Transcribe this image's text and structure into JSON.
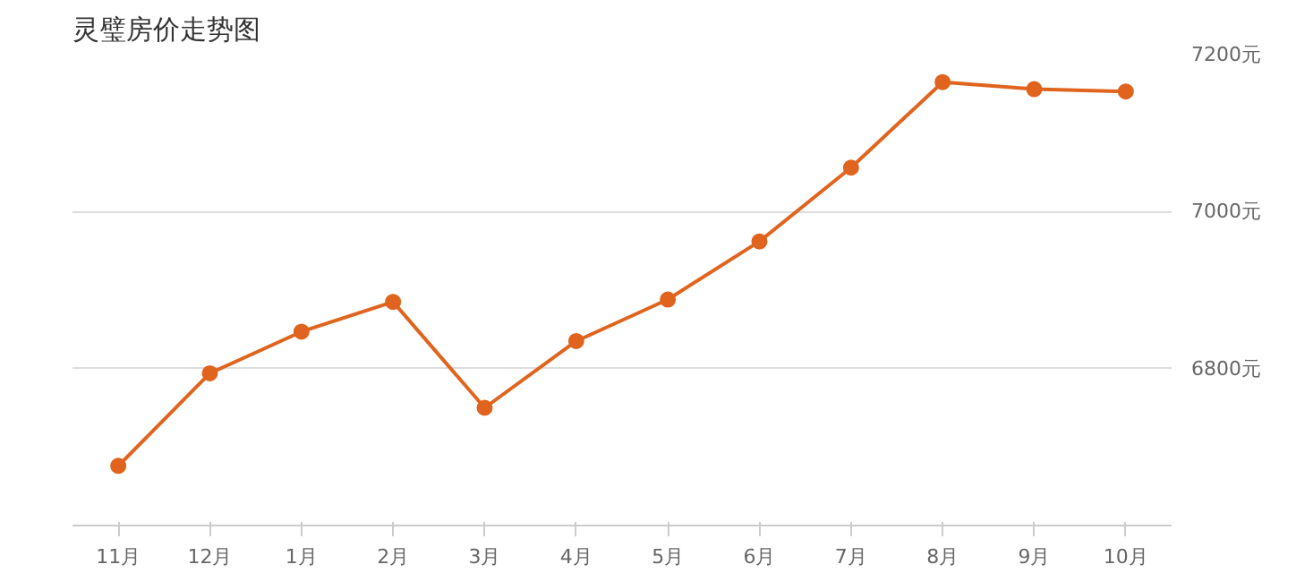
{
  "chart_data": {
    "type": "line",
    "title": "灵璧房价走势图",
    "categories": [
      "11月",
      "12月",
      "1月",
      "2月",
      "3月",
      "4月",
      "5月",
      "6月",
      "7月",
      "8月",
      "9月",
      "10月"
    ],
    "series": [
      {
        "color": "#e0641e",
        "values": [
          6676,
          6794,
          6847,
          6885,
          6750,
          6835,
          6888,
          6962,
          7056,
          7165,
          7156,
          7153
        ]
      }
    ],
    "ylim": [
      6600,
      7200
    ],
    "yticks": [
      {
        "value": 6600,
        "label": null
      },
      {
        "value": 6800,
        "label": "6800元"
      },
      {
        "value": 7000,
        "label": "7000元"
      },
      {
        "value": 7200,
        "label": "7200元"
      }
    ],
    "grid": "y",
    "marker": "circle",
    "line_style": "solid"
  }
}
